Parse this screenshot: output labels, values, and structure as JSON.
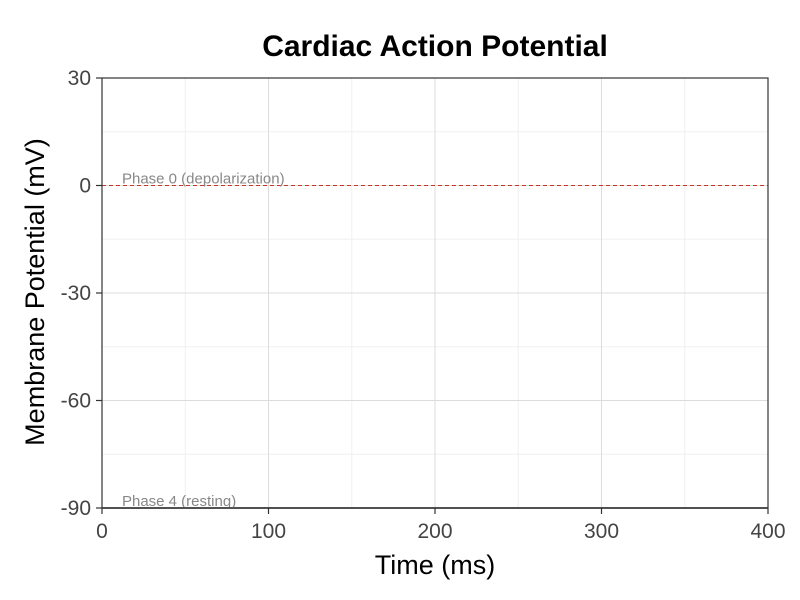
{
  "chart_data": {
    "type": "line",
    "title": "Cardiac Action Potential",
    "xlabel": "Time (ms)",
    "ylabel": "Membrane Potential (mV)",
    "xlim": [
      0,
      400
    ],
    "ylim": [
      -90,
      30
    ],
    "x_ticks": [
      0,
      100,
      200,
      300,
      400
    ],
    "y_ticks": [
      -90,
      -60,
      -30,
      0,
      30
    ],
    "x_tick_labels": [
      "0",
      "100",
      "200",
      "300",
      "400"
    ],
    "y_tick_labels": [
      "-90",
      "-60",
      "-30",
      "0",
      "30"
    ],
    "grid": true,
    "series": [
      {
        "color": "#000000",
        "x": [
          0,
          400
        ],
        "y": [
          -90,
          -90
        ]
      }
    ],
    "reference_lines": [
      {
        "y": 0,
        "color": "#c0392b",
        "style": "dashed"
      }
    ],
    "annotations": [
      {
        "text": "Phase 0 (depolarization)",
        "x": 12,
        "y": 0
      },
      {
        "text": "Phase 4 (resting)",
        "x": 12,
        "y": -90
      }
    ]
  }
}
